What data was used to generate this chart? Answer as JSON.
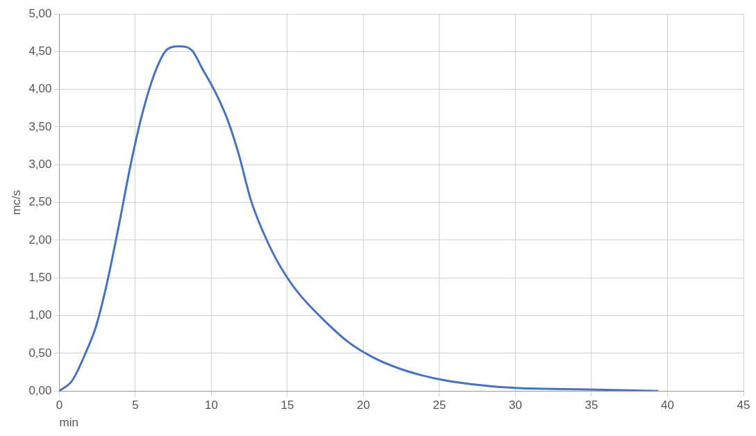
{
  "chart_data": {
    "type": "line",
    "xlabel": "min",
    "ylabel": "mc/s",
    "xlim": [
      0,
      45
    ],
    "xticks": [
      0,
      5,
      10,
      15,
      20,
      25,
      30,
      35,
      40,
      45
    ],
    "ylim": [
      0,
      5
    ],
    "yticks": [
      {
        "value": 0,
        "label": "0,00"
      },
      {
        "value": 0.5,
        "label": "0,50"
      },
      {
        "value": 1,
        "label": "1,00"
      },
      {
        "value": 1.5,
        "label": "1,50"
      },
      {
        "value": 2,
        "label": "2,00"
      },
      {
        "value": 2.5,
        "label": "2,50"
      },
      {
        "value": 3,
        "label": "3,00"
      },
      {
        "value": 3.5,
        "label": "3,50"
      },
      {
        "value": 4,
        "label": "4,00"
      },
      {
        "value": 4.5,
        "label": "4,50"
      },
      {
        "value": 5,
        "label": "5,00"
      }
    ],
    "grid": true,
    "marker": "none",
    "line_style": "solid",
    "series": [
      {
        "color": "#4472c4",
        "x": [
          0,
          0.85,
          1.78,
          2.4,
          3.1,
          3.9,
          4.74,
          5.54,
          6.34,
          7.1,
          7.9,
          8.7,
          9.44,
          10.24,
          11.04,
          11.8,
          12.6,
          13.4,
          14.2,
          15.0,
          15.8,
          17.4,
          19.0,
          20.6,
          22.2,
          23.8,
          25.4,
          27.6,
          30.0,
          34.7,
          39.4
        ],
        "values": [
          0,
          0.14,
          0.53,
          0.85,
          1.4,
          2.18,
          3.05,
          3.74,
          4.25,
          4.53,
          4.57,
          4.52,
          4.26,
          3.97,
          3.61,
          3.14,
          2.53,
          2.11,
          1.77,
          1.5,
          1.28,
          0.94,
          0.65,
          0.45,
          0.31,
          0.21,
          0.14,
          0.08,
          0.04,
          0.02,
          0
        ]
      }
    ]
  }
}
